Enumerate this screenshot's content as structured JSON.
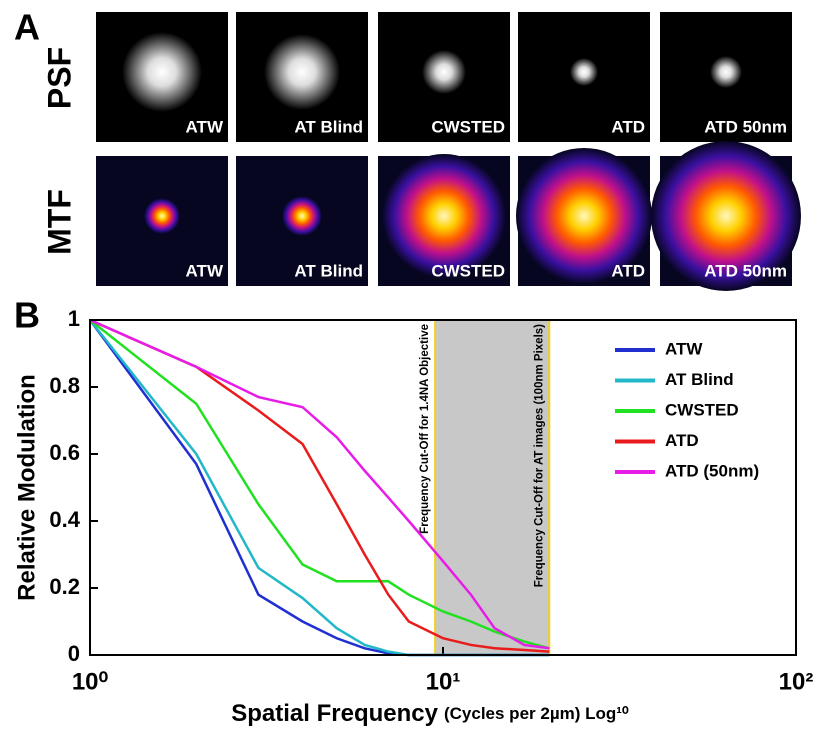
{
  "panel_a": {
    "label": "A",
    "rows": [
      {
        "label": "PSF",
        "images": [
          "ATW",
          "AT Blind",
          "CWSTED",
          "ATD",
          "ATD 50nm"
        ]
      },
      {
        "label": "MTF",
        "images": [
          "ATW",
          "AT Blind",
          "CWSTED",
          "ATD",
          "ATD 50nm"
        ]
      }
    ]
  },
  "chart_data": {
    "type": "line",
    "panel_label": "B",
    "xlabel": "Spatial Frequency",
    "xlabel_units": "(Cycles per 2µm) Log¹⁰",
    "ylabel": "Relative Modulation",
    "log_x": true,
    "xlim": [
      1,
      100
    ],
    "xticks": [
      {
        "value": 1,
        "label": "10⁰"
      },
      {
        "value": 10,
        "label": "10¹"
      },
      {
        "value": 100,
        "label": "10²"
      }
    ],
    "ylim": [
      0,
      1
    ],
    "yticks": [
      0,
      0.2,
      0.4,
      0.6,
      0.8,
      1
    ],
    "legend": "upper right",
    "x": [
      1,
      2,
      3,
      4,
      5,
      6,
      7,
      8,
      10,
      12,
      14,
      17,
      20
    ],
    "series": [
      {
        "name": "ATW",
        "color": "#1f2fd0",
        "values": [
          1,
          0.57,
          0.18,
          0.1,
          0.05,
          0.02,
          0.005,
          0,
          0,
          0,
          0,
          0,
          0
        ]
      },
      {
        "name": "AT Blind",
        "color": "#22b8c8",
        "values": [
          1,
          0.6,
          0.26,
          0.17,
          0.08,
          0.03,
          0.01,
          0,
          0,
          0,
          0,
          0,
          0
        ]
      },
      {
        "name": "CWSTED",
        "color": "#22e022",
        "values": [
          1,
          0.75,
          0.45,
          0.27,
          0.22,
          0.22,
          0.22,
          0.18,
          0.13,
          0.1,
          0.07,
          0.04,
          0.02
        ]
      },
      {
        "name": "ATD",
        "color": "#e81c1c",
        "values": [
          1,
          0.86,
          0.73,
          0.63,
          0.45,
          0.3,
          0.18,
          0.1,
          0.05,
          0.03,
          0.02,
          0.015,
          0.01
        ]
      },
      {
        "name": "ATD (50nm)",
        "color": "#e81ce8",
        "values": [
          1,
          0.86,
          0.77,
          0.74,
          0.65,
          0.55,
          0.47,
          0.4,
          0.28,
          0.18,
          0.08,
          0.03,
          0.02
        ]
      }
    ],
    "shaded_region": [
      9.5,
      20
    ],
    "annotations": [
      {
        "text": "Frequency Cut-Off for 1.4NA Objective",
        "x": 9.5
      },
      {
        "text": "Frequency Cut-Off for AT images (100nm Pixels)",
        "x": 20
      }
    ]
  }
}
